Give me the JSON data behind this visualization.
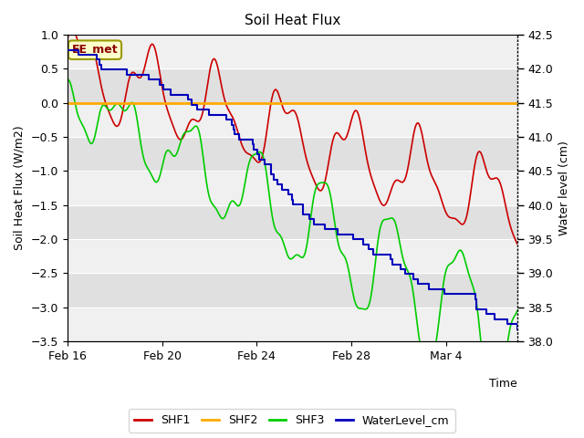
{
  "title": "Soil Heat Flux",
  "ylabel_left": "Soil Heat Flux (W/m2)",
  "ylabel_right": "Water level (cm)",
  "xlabel": "Time",
  "annotation_text": "EE_met",
  "ylim_left": [
    -3.5,
    1.0
  ],
  "ylim_right": [
    38.0,
    42.5
  ],
  "background_color": "#ffffff",
  "plot_bg_light": "#f0f0f0",
  "plot_bg_dark": "#e0e0e0",
  "colors": {
    "SHF1": "#cc0000",
    "SHF2": "#ffaa00",
    "SHF3": "#00cc00",
    "WaterLevel_cm": "#0000bb"
  },
  "x_tick_labels": [
    "Feb 16",
    "Feb 20",
    "Feb 24",
    "Feb 28",
    "Mar 4"
  ],
  "x_tick_positions": [
    0,
    4,
    8,
    12,
    16
  ],
  "xlim": [
    0,
    19
  ],
  "yticks_left": [
    -3.5,
    -3.0,
    -2.5,
    -2.0,
    -1.5,
    -1.0,
    -0.5,
    0.0,
    0.5,
    1.0
  ],
  "yticks_right": [
    38.0,
    38.5,
    39.0,
    39.5,
    40.0,
    40.5,
    41.0,
    41.5,
    42.0,
    42.5
  ]
}
